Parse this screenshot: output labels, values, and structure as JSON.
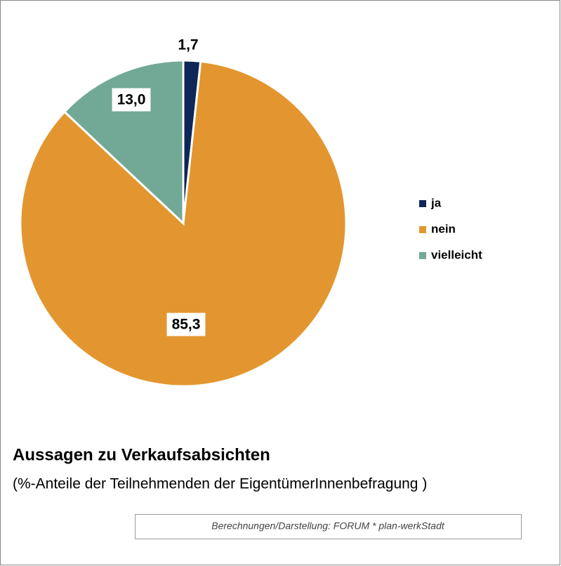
{
  "chart_data": {
    "type": "pie",
    "title": "Aussagen zu Verkaufsabsichten",
    "subtitle": "(%-Anteile der Teilnehmenden der EigentümerInnenbefragung )",
    "source": "Berechnungen/Darstellung: FORUM * plan-werkStadt",
    "categories": [
      "ja",
      "nein",
      "vielleicht"
    ],
    "values": [
      1.7,
      85.3,
      13.0
    ],
    "value_labels": [
      "1,7",
      "85,3",
      "13,0"
    ],
    "colors": [
      "#0e2758",
      "#e3962f",
      "#72a896"
    ],
    "legend": "right"
  }
}
